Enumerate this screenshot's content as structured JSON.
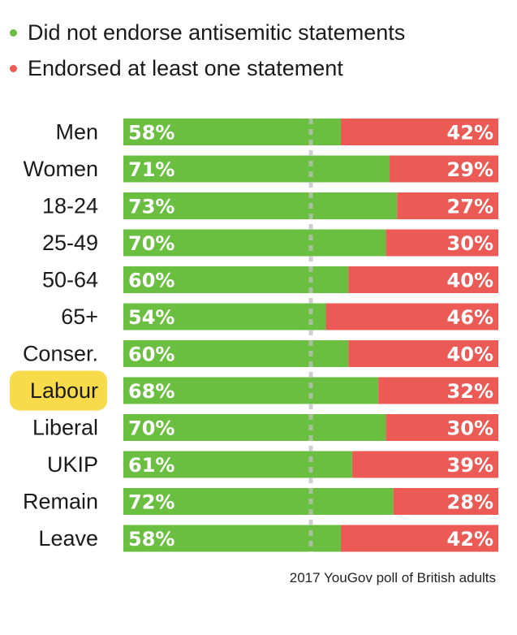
{
  "chart_data": {
    "type": "bar",
    "stacked": true,
    "orientation": "horizontal",
    "categories": [
      "Men",
      "Women",
      "18-24",
      "25-49",
      "50-64",
      "65+",
      "Conser.",
      "Labour",
      "Liberal",
      "UKIP",
      "Remain",
      "Leave"
    ],
    "highlighted_category": "Labour",
    "series": [
      {
        "name": "Did not endorse antisemitic statements",
        "values": [
          58,
          71,
          73,
          70,
          60,
          54,
          60,
          68,
          70,
          61,
          72,
          58
        ],
        "color": "#6abf40"
      },
      {
        "name": "Endorsed at least one statement",
        "values": [
          42,
          29,
          27,
          30,
          40,
          46,
          40,
          32,
          30,
          39,
          28,
          42
        ],
        "color": "#ec5a56"
      }
    ],
    "value_suffix": "%",
    "xlim": [
      0,
      100
    ],
    "reference_line": 50,
    "legend_position": "top-left",
    "grid": false
  },
  "colors": {
    "green": "#6abf40",
    "red": "#ec5a56",
    "highlight": "#f7db4a",
    "midline": "#bfbfbf"
  },
  "source_note": "2017 YouGov poll of British adults"
}
